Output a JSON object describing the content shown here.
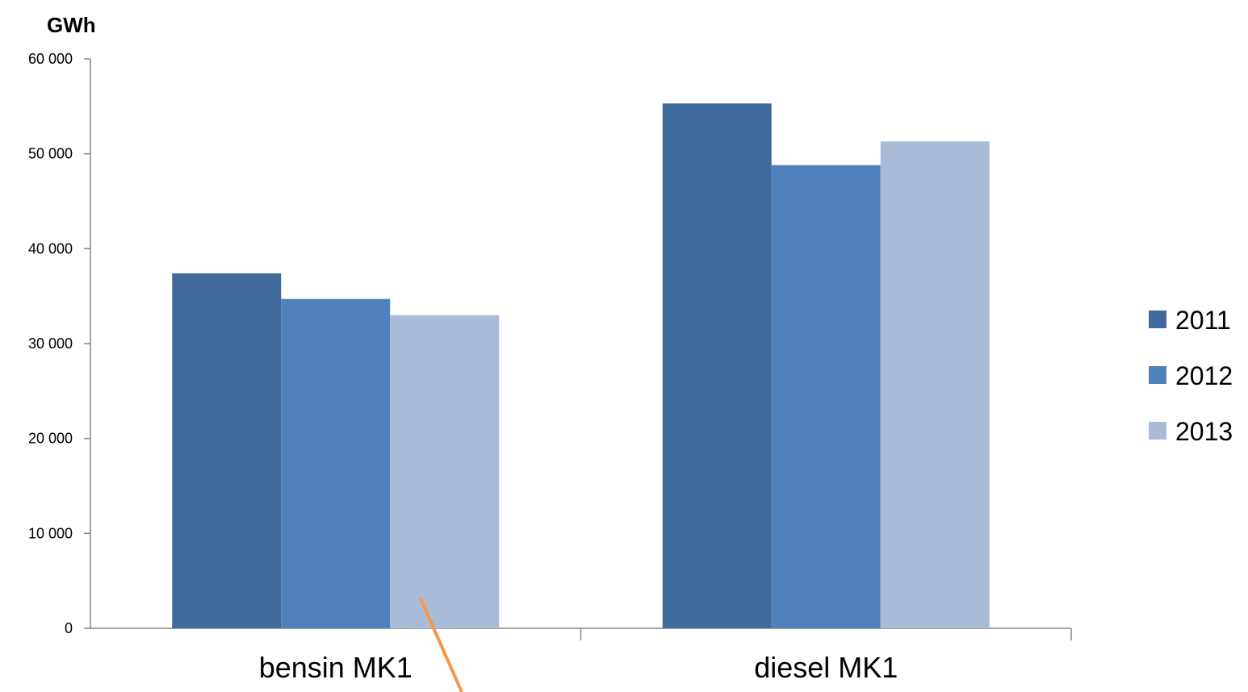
{
  "chart_data": {
    "type": "bar",
    "ylabel": "GWh",
    "categories": [
      "bensin MK1",
      "diesel MK1"
    ],
    "series": [
      {
        "name": "2011",
        "values": [
          37400,
          55300
        ],
        "color": "#3f6a9b"
      },
      {
        "name": "2012",
        "values": [
          34700,
          48800
        ],
        "color": "#4f81bd"
      },
      {
        "name": "2013",
        "values": [
          33000,
          51300
        ],
        "color": "#aabbd8"
      }
    ],
    "ylim": [
      0,
      60000
    ],
    "yticks": [
      0,
      10000,
      20000,
      30000,
      40000,
      50000,
      60000
    ],
    "ytick_labels": [
      "0",
      "10 000",
      "20 000",
      "30 000",
      "40 000",
      "50 000",
      "60 000"
    ],
    "grid": false,
    "legend_position": "right",
    "annotation_line_color": "#f79646"
  }
}
